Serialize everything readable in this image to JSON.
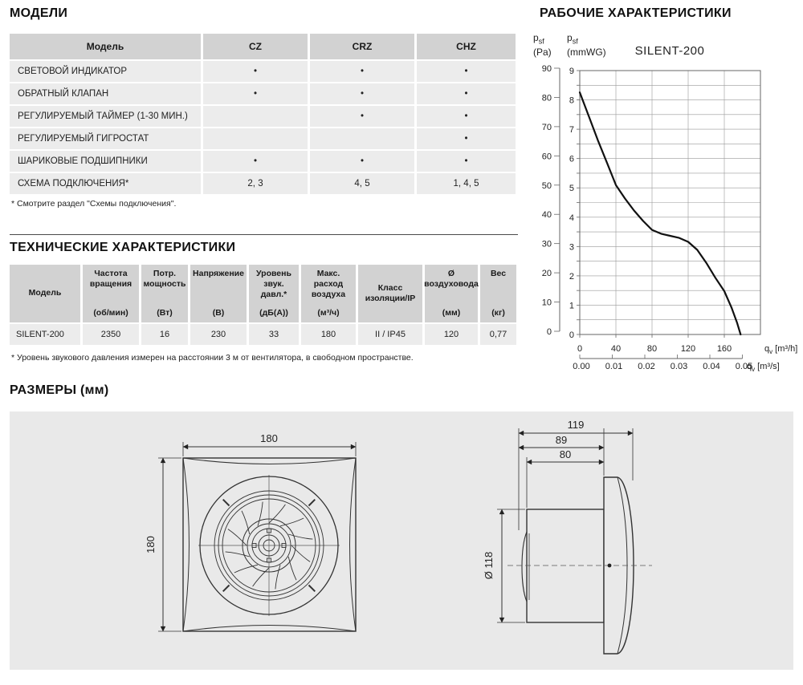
{
  "models_section": {
    "title": "МОДЕЛИ",
    "table": {
      "headers": [
        "Модель",
        "CZ",
        "CRZ",
        "CHZ"
      ],
      "rows": [
        {
          "label": "СВЕТОВОЙ ИНДИКАТОР",
          "cz": "•",
          "crz": "•",
          "chz": "•"
        },
        {
          "label": "ОБРАТНЫЙ КЛАПАН",
          "cz": "•",
          "crz": "•",
          "chz": "•"
        },
        {
          "label": "РЕГУЛИРУЕМЫЙ ТАЙМЕР (1-30 МИН.)",
          "cz": "",
          "crz": "•",
          "chz": "•"
        },
        {
          "label": "РЕГУЛИРУЕМЫЙ ГИГРОСТАТ",
          "cz": "",
          "crz": "",
          "chz": "•"
        },
        {
          "label": "ШАРИКОВЫЕ ПОДШИПНИКИ",
          "cz": "•",
          "crz": "•",
          "chz": "•"
        },
        {
          "label": "СХЕМА ПОДКЛЮЧЕНИЯ*",
          "cz": "2, 3",
          "crz": "4, 5",
          "chz": "1, 4, 5"
        }
      ]
    },
    "footnote": "* Смотрите раздел \"Схемы подключения\"."
  },
  "tech_section": {
    "title": "ТЕХНИЧЕСКИЕ ХАРАКТЕРИСТИКИ",
    "table": {
      "headers": [
        {
          "name": "Модель",
          "unit": ""
        },
        {
          "name": "Частота вращения",
          "unit": "(об/мин)"
        },
        {
          "name": "Потр. мощность",
          "unit": "(Вт)"
        },
        {
          "name": "Напряжение",
          "unit": "(В)"
        },
        {
          "name": "Уровень звук. давл.*",
          "unit": "(дБ(А))"
        },
        {
          "name": "Макс. расход воздуха",
          "unit": "(м³/ч)"
        },
        {
          "name": "Класс изоляции/IP",
          "unit": ""
        },
        {
          "name": "Ø воздуховода",
          "unit": "(мм)"
        },
        {
          "name": "Вес",
          "unit": "(кг)"
        }
      ],
      "row": [
        "SILENT-200",
        "2350",
        "16",
        "230",
        "33",
        "180",
        "II / IP45",
        "120",
        "0,77"
      ]
    },
    "footnote": "* Уровень звукового давления измерен на расстоянии 3 м от вентилятора, в свободном пространстве."
  },
  "performance_section": {
    "title": "РАБОЧИЕ ХАРАКТЕРИСТИКИ"
  },
  "dimensions_section": {
    "title": "РАЗМЕРЫ (мм)",
    "front_view": {
      "width_label": "180",
      "height_label": "180"
    },
    "side_view": {
      "depth_label": "119",
      "mid_label": "89",
      "duct_label": "80",
      "diameter_label": "Ø 118"
    }
  },
  "chart_data": {
    "type": "line",
    "title": "SILENT-200",
    "x_axis": {
      "unit_sym": "q",
      "unit_sub": "v",
      "unit_rest": " [m³/h]",
      "ticks": [
        0,
        40,
        80,
        120,
        160
      ],
      "max": 200,
      "grid_step": 40
    },
    "x_axis_secondary": {
      "unit_sym": "q",
      "unit_sub": "v",
      "unit_rest": " [m³/s]",
      "ticks": [
        "0.00",
        "0.01",
        "0.02",
        "0.03",
        "0.04",
        "0.05"
      ],
      "m3h_per_unit": 3600
    },
    "y_axis_pa": {
      "sym": "p",
      "sub": "sf",
      "unit": "(Pa)",
      "ticks": [
        90,
        80,
        70,
        60,
        50,
        40,
        30,
        20,
        10,
        0
      ]
    },
    "y_axis_mmwg": {
      "sym": "p",
      "sub": "sf",
      "unit": "(mmWG)",
      "ticks": [
        9,
        8,
        7,
        6,
        5,
        4,
        3,
        2,
        1,
        0
      ],
      "max": 9,
      "grid_step": 0.5
    },
    "pa_per_mmwg": 9.81,
    "series": [
      {
        "name": "SILENT-200",
        "points_m3h_pa": [
          [
            0,
            81
          ],
          [
            10,
            73
          ],
          [
            20,
            65
          ],
          [
            30,
            57.5
          ],
          [
            40,
            50
          ],
          [
            50,
            45.5
          ],
          [
            60,
            41.5
          ],
          [
            70,
            38
          ],
          [
            80,
            35
          ],
          [
            90,
            33.7
          ],
          [
            100,
            33
          ],
          [
            110,
            32.3
          ],
          [
            120,
            31
          ],
          [
            130,
            28.3
          ],
          [
            140,
            24
          ],
          [
            150,
            19
          ],
          [
            160,
            14.5
          ],
          [
            168,
            9
          ],
          [
            174,
            4
          ],
          [
            178,
            0
          ]
        ]
      }
    ],
    "legend": "none",
    "grid": true
  }
}
